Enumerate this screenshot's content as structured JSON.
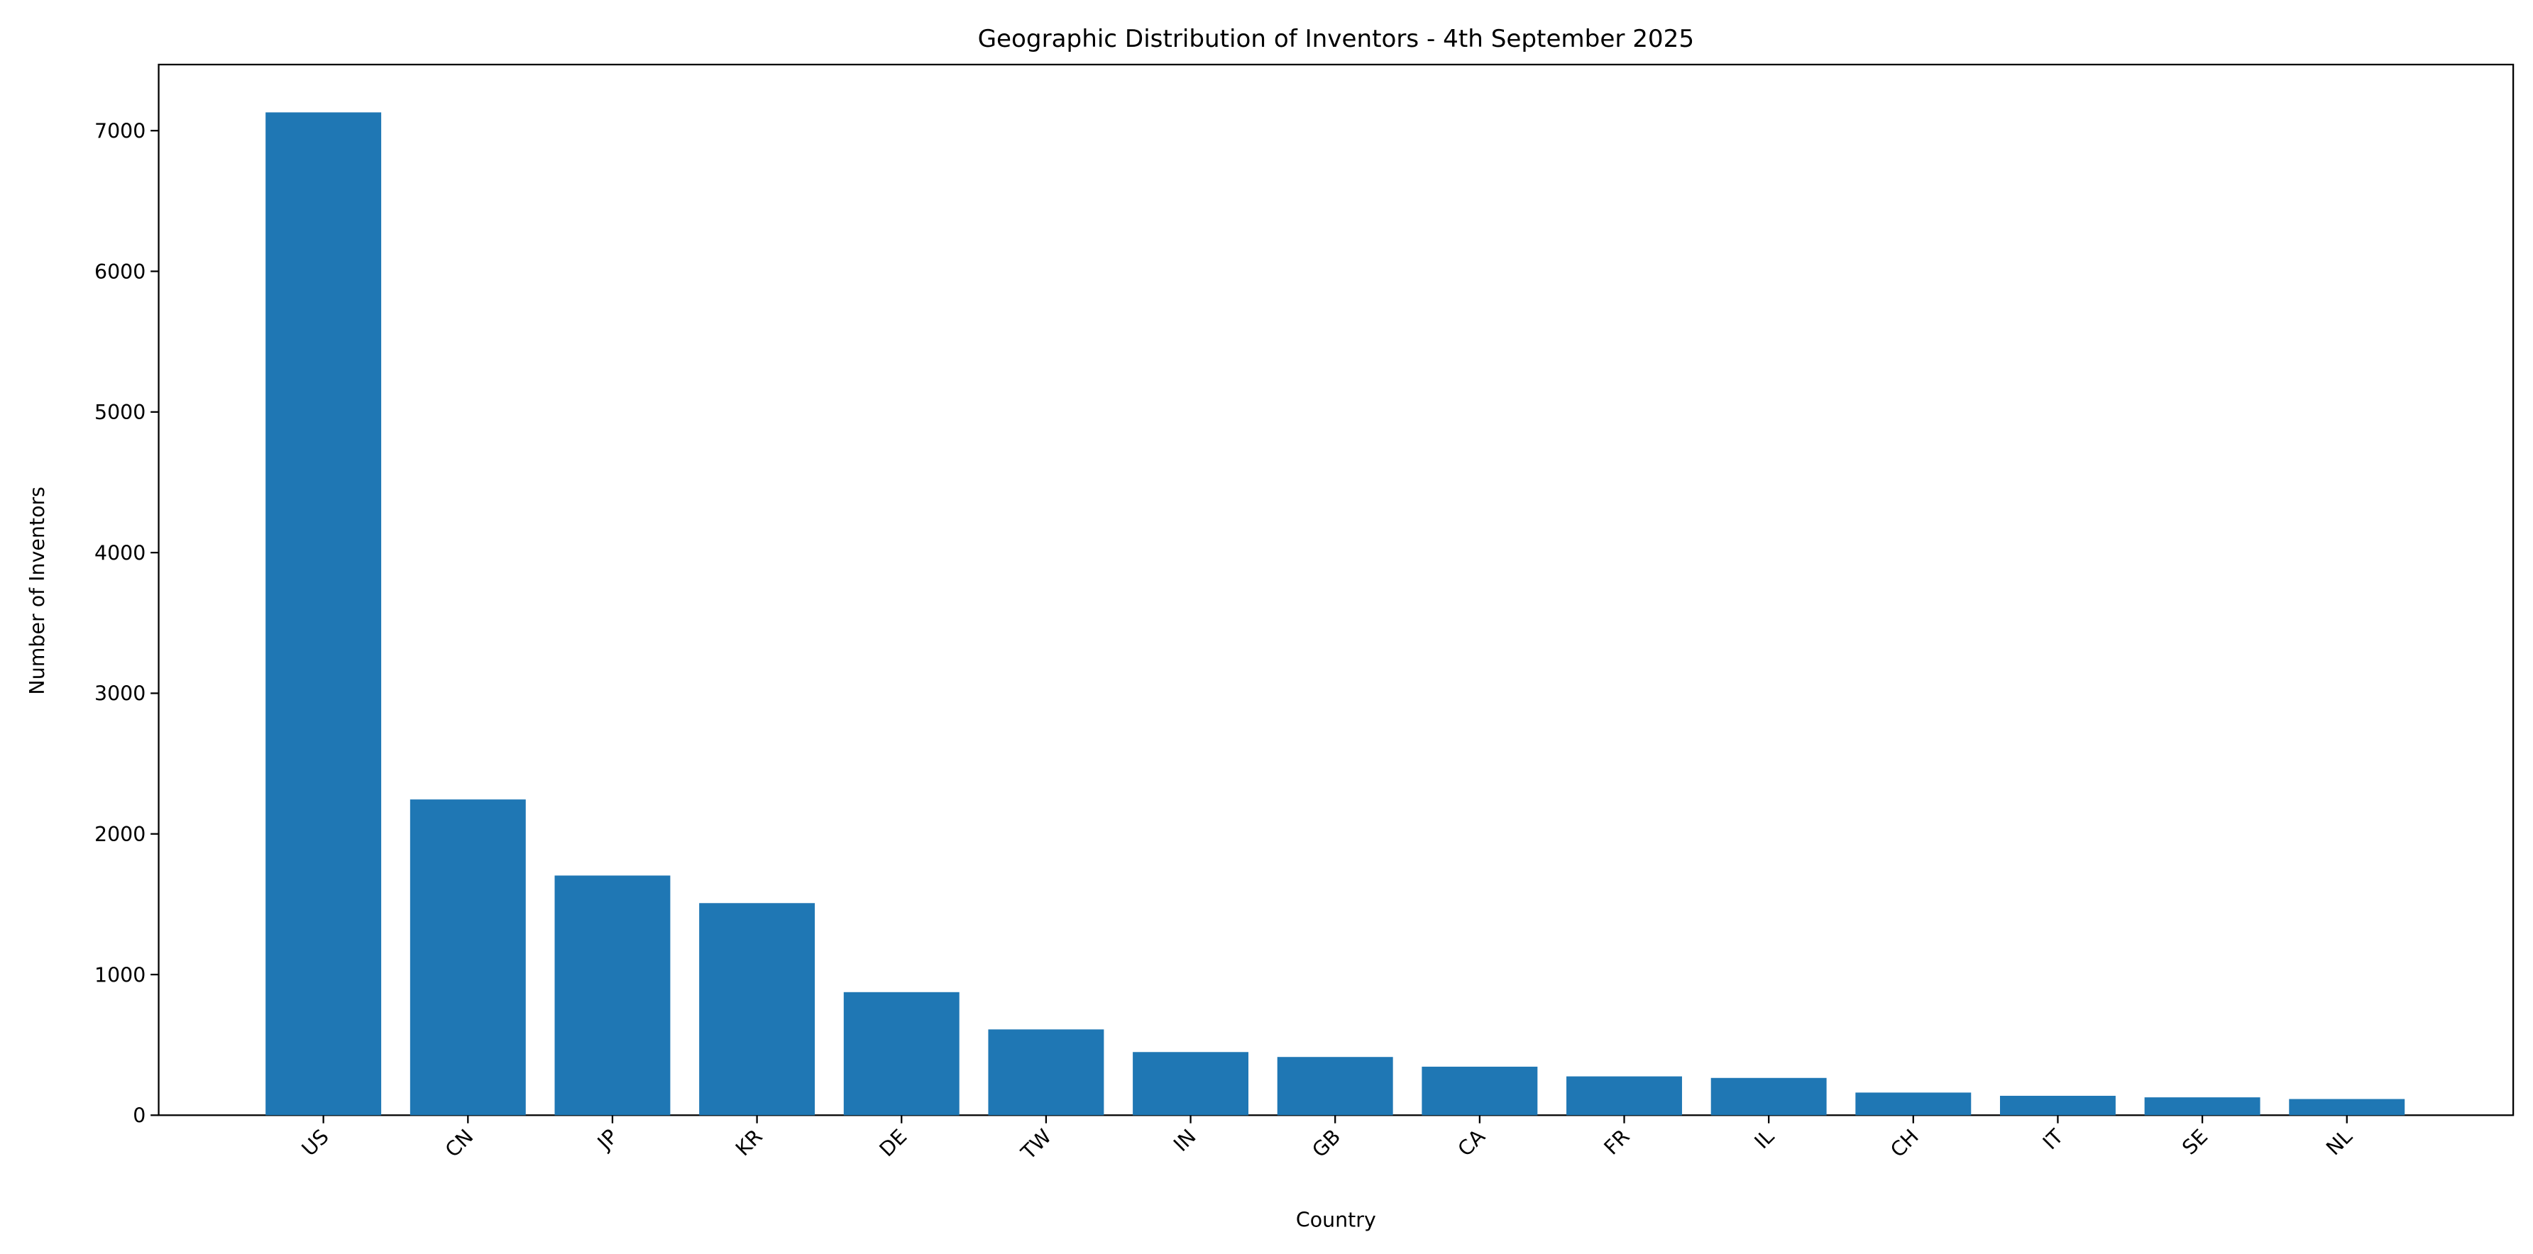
{
  "chart_data": {
    "type": "bar",
    "title": "Geographic Distribution of Inventors - 4th September 2025",
    "xlabel": "Country",
    "ylabel": "Number of Inventors",
    "categories": [
      "US",
      "CN",
      "JP",
      "KR",
      "DE",
      "TW",
      "IN",
      "GB",
      "CA",
      "FR",
      "IL",
      "CH",
      "IT",
      "SE",
      "NL"
    ],
    "values": [
      7130,
      2245,
      1704,
      1508,
      875,
      610,
      449,
      414,
      345,
      276,
      265,
      161,
      138,
      127,
      115
    ],
    "color": "#1f77b4",
    "ylim": [
      0,
      7470
    ],
    "yticks": [
      0,
      1000,
      2000,
      3000,
      4000,
      5000,
      6000,
      7000
    ],
    "grid": false
  }
}
